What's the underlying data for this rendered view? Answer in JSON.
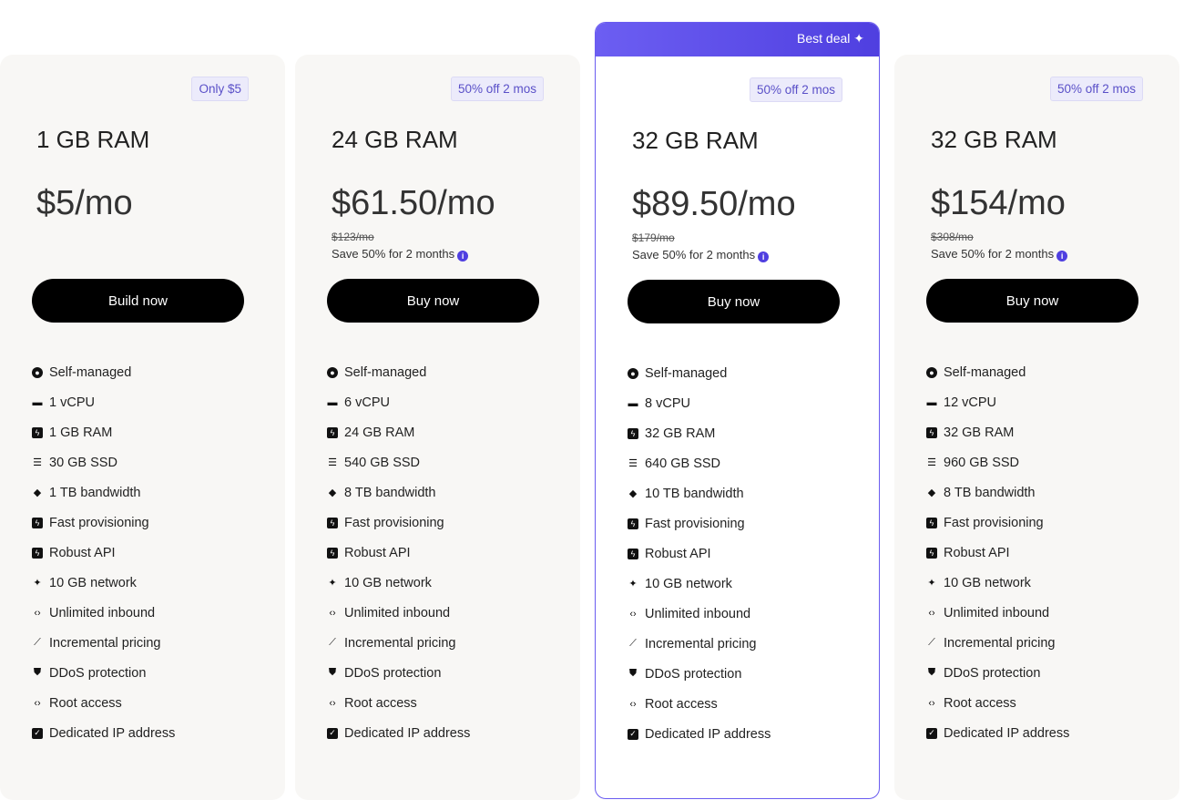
{
  "plans": [
    {
      "badge": "Only $5",
      "title": "1 GB RAM",
      "price": "$5/mo",
      "old_price": "",
      "save": "",
      "button": "Build now",
      "features": [
        "Self-managed",
        "1 vCPU",
        "1 GB RAM",
        "30 GB SSD",
        "1 TB bandwidth",
        "Fast provisioning",
        "Robust API",
        "10 GB network",
        "Unlimited inbound",
        "Incremental pricing",
        "DDoS protection",
        "Root access",
        "Dedicated IP address"
      ]
    },
    {
      "badge": "50% off 2 mos",
      "title": "24 GB RAM",
      "price": "$61.50/mo",
      "old_price": "$123/mo",
      "save": "Save 50% for 2 months",
      "button": "Buy now",
      "features": [
        "Self-managed",
        "6 vCPU",
        "24 GB RAM",
        "540 GB SSD",
        "8 TB bandwidth",
        "Fast provisioning",
        "Robust API",
        "10 GB network",
        "Unlimited inbound",
        "Incremental pricing",
        "DDoS protection",
        "Root access",
        "Dedicated IP address"
      ]
    },
    {
      "ribbon": "Best deal",
      "badge": "50% off 2 mos",
      "title": "32 GB RAM",
      "price": "$89.50/mo",
      "old_price": "$179/mo",
      "save": "Save 50% for 2 months",
      "button": "Buy now",
      "features": [
        "Self-managed",
        "8 vCPU",
        "32 GB RAM",
        "640 GB SSD",
        "10 TB bandwidth",
        "Fast provisioning",
        "Robust API",
        "10 GB network",
        "Unlimited inbound",
        "Incremental pricing",
        "DDoS protection",
        "Root access",
        "Dedicated IP address"
      ]
    },
    {
      "badge": "50% off 2 mos",
      "title": "32 GB RAM",
      "price": "$154/mo",
      "old_price": "$308/mo",
      "save": "Save 50% for 2 months",
      "button": "Buy now",
      "features": [
        "Self-managed",
        "12 vCPU",
        "32 GB RAM",
        "960 GB SSD",
        "8 TB bandwidth",
        "Fast provisioning",
        "Robust API",
        "10 GB network",
        "Unlimited inbound",
        "Incremental pricing",
        "DDoS protection",
        "Root access",
        "Dedicated IP address"
      ]
    }
  ],
  "feature_icons": [
    "user-circle-icon",
    "cpu-icon",
    "bolt-icon",
    "storage-icon",
    "wifi-icon",
    "bolt-icon",
    "bolt-icon",
    "sparkle-icon",
    "code-icon",
    "chart-icon",
    "shield-icon",
    "code-icon",
    "checkbox-icon"
  ],
  "colors": {
    "accent": "#5a4ee8",
    "card_bg": "#f8f7f5",
    "button": "#000000"
  }
}
